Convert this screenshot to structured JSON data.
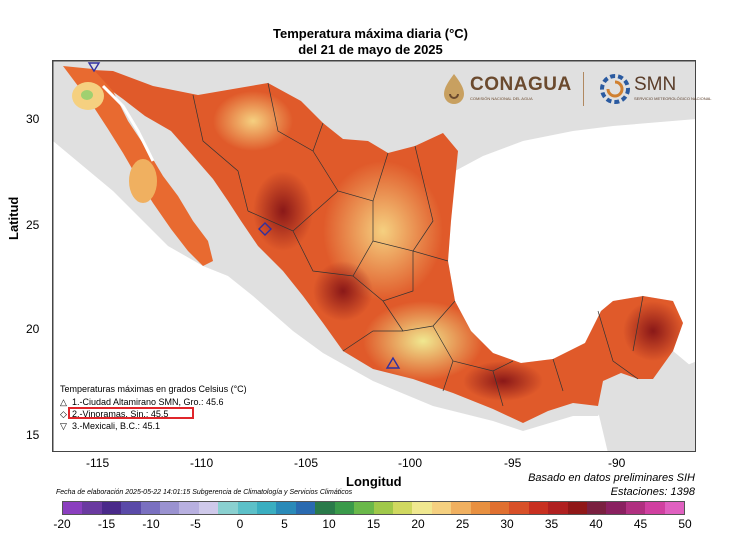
{
  "title_line1": "Temperatura máxima diaria (°C)",
  "title_line2": "del 21 de mayo de 2025",
  "axes": {
    "ylabel": "Latitud",
    "xlabel": "Longitud",
    "y_ticks": [
      "30",
      "25",
      "20",
      "15"
    ],
    "x_ticks": [
      "-115",
      "-110",
      "-105",
      "-100",
      "-95",
      "-90"
    ]
  },
  "legend": {
    "title": "Temperaturas máximas en grados Celsius (°C)",
    "items": [
      {
        "marker": "△",
        "text": "1.-Ciudad Altamirano SMN, Gro.: 45.6",
        "lon": -100.67,
        "lat": 18.35
      },
      {
        "marker": "◇",
        "text": "2.-Vinoramas, Sin.: 45.5",
        "lon": -107.2,
        "lat": 24.8
      },
      {
        "marker": "▽",
        "text": "3.-Mexicali, B.C.: 45.1",
        "lon": -115.45,
        "lat": 32.6
      }
    ]
  },
  "logos": {
    "conagua": "CONAGUA",
    "conagua_sub": "COMISIÓN NACIONAL DEL AGUA",
    "smn": "SMN",
    "smn_sub": "SERVICIO METEOROLÓGICO NACIONAL"
  },
  "footer": {
    "elaboration": "Fecha de elaboración 2025-05-22 14:01:15 Subgerencia de Climatología y Servicios Climáticos",
    "source": "Basado en datos preliminares SIH",
    "stations": "Estaciones:  1398"
  },
  "colorbar": {
    "ticks": [
      "-20",
      "-15",
      "-10",
      "-5",
      "0",
      "5",
      "10",
      "15",
      "20",
      "25",
      "30",
      "35",
      "40",
      "45",
      "50"
    ],
    "colors": [
      "#8b3fbf",
      "#6a3aa0",
      "#4a2a8a",
      "#5a4aa8",
      "#7a70c0",
      "#9a92d0",
      "#b8b0e0",
      "#cfc9ea",
      "#8ad0d0",
      "#5cc0c8",
      "#3aaec0",
      "#2a8ab8",
      "#2a6ab0",
      "#2a7a4a",
      "#3a9a4a",
      "#6ab84a",
      "#a0c84a",
      "#d0d860",
      "#f0e890",
      "#f5d080",
      "#f0b060",
      "#e89040",
      "#e07030",
      "#d85028",
      "#c83020",
      "#b02020",
      "#901818",
      "#7a2040",
      "#8a2060",
      "#b03080",
      "#d040a0",
      "#e060c0"
    ]
  }
}
